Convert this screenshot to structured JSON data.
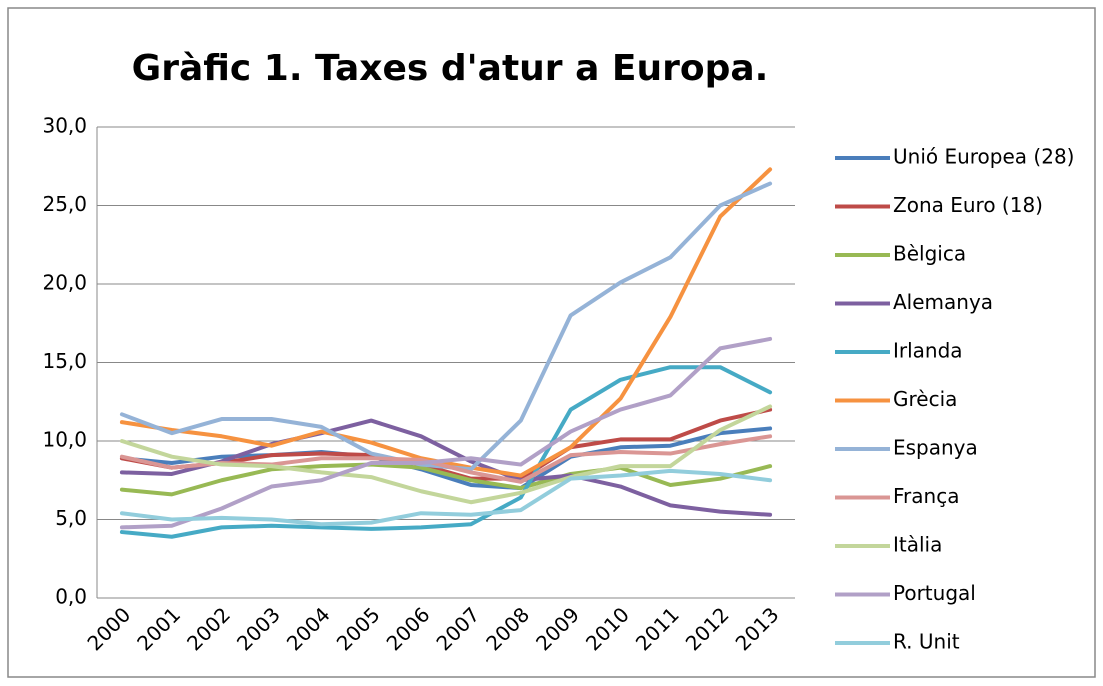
{
  "chart_data": {
    "type": "line",
    "title": "Gràfic 1. Taxes d'atur a Europa.",
    "categories": [
      "2000",
      "2001",
      "2002",
      "2003",
      "2004",
      "2005",
      "2006",
      "2007",
      "2008",
      "2009",
      "2010",
      "2011",
      "2012",
      "2013"
    ],
    "series": [
      {
        "name": "Unió Europea (28)",
        "color": "#4a7ebb",
        "values": [
          8.9,
          8.6,
          9.0,
          9.1,
          9.3,
          9.0,
          8.2,
          7.2,
          7.0,
          9.0,
          9.6,
          9.7,
          10.5,
          10.8
        ]
      },
      {
        "name": "Zona Euro (18)",
        "color": "#be4b48",
        "values": [
          8.9,
          8.3,
          8.6,
          9.1,
          9.2,
          9.1,
          8.5,
          7.6,
          7.6,
          9.6,
          10.1,
          10.1,
          11.3,
          12.0
        ]
      },
      {
        "name": "Bèlgica",
        "color": "#98b954",
        "values": [
          6.9,
          6.6,
          7.5,
          8.2,
          8.4,
          8.5,
          8.3,
          7.5,
          7.0,
          7.9,
          8.3,
          7.2,
          7.6,
          8.4
        ]
      },
      {
        "name": "Alemanya",
        "color": "#7d60a0",
        "values": [
          8.0,
          7.9,
          8.7,
          9.8,
          10.5,
          11.3,
          10.3,
          8.7,
          7.5,
          7.8,
          7.1,
          5.9,
          5.5,
          5.3
        ]
      },
      {
        "name": "Irlanda",
        "color": "#46aac5",
        "values": [
          4.2,
          3.9,
          4.5,
          4.6,
          4.5,
          4.4,
          4.5,
          4.7,
          6.4,
          12.0,
          13.9,
          14.7,
          14.7,
          13.1
        ]
      },
      {
        "name": "Grècia",
        "color": "#f69240",
        "values": [
          11.2,
          10.7,
          10.3,
          9.7,
          10.6,
          9.9,
          8.9,
          8.3,
          7.8,
          9.6,
          12.7,
          17.9,
          24.3,
          27.3
        ]
      },
      {
        "name": "Espanya",
        "color": "#95b3d7",
        "values": [
          11.7,
          10.5,
          11.4,
          11.4,
          10.9,
          9.2,
          8.5,
          8.2,
          11.3,
          18.0,
          20.1,
          21.7,
          25.0,
          26.4
        ]
      },
      {
        "name": "França",
        "color": "#da9694",
        "values": [
          9.0,
          8.3,
          8.6,
          8.5,
          8.9,
          8.9,
          8.8,
          8.0,
          7.4,
          9.1,
          9.3,
          9.2,
          9.8,
          10.3
        ]
      },
      {
        "name": "Itàlia",
        "color": "#c3d69b",
        "values": [
          10.0,
          9.0,
          8.5,
          8.4,
          8.0,
          7.7,
          6.8,
          6.1,
          6.7,
          7.7,
          8.4,
          8.4,
          10.7,
          12.2
        ]
      },
      {
        "name": "Portugal",
        "color": "#b1a0c7",
        "values": [
          4.5,
          4.6,
          5.7,
          7.1,
          7.5,
          8.6,
          8.6,
          8.9,
          8.5,
          10.6,
          12.0,
          12.9,
          15.9,
          16.5
        ]
      },
      {
        "name": "R. Unit",
        "color": "#92cddc",
        "values": [
          5.4,
          5.0,
          5.1,
          5.0,
          4.7,
          4.8,
          5.4,
          5.3,
          5.6,
          7.6,
          7.8,
          8.1,
          7.9,
          7.5
        ]
      }
    ],
    "ylim": [
      0,
      30
    ],
    "yticks": [
      {
        "value": 0,
        "label": "0,0"
      },
      {
        "value": 5,
        "label": "5,0"
      },
      {
        "value": 10,
        "label": "10,0"
      },
      {
        "value": 15,
        "label": "15,0"
      },
      {
        "value": 20,
        "label": "20,0"
      },
      {
        "value": 25,
        "label": "25,0"
      },
      {
        "value": 30,
        "label": "30,0"
      }
    ],
    "grid": true,
    "legend": "right"
  }
}
